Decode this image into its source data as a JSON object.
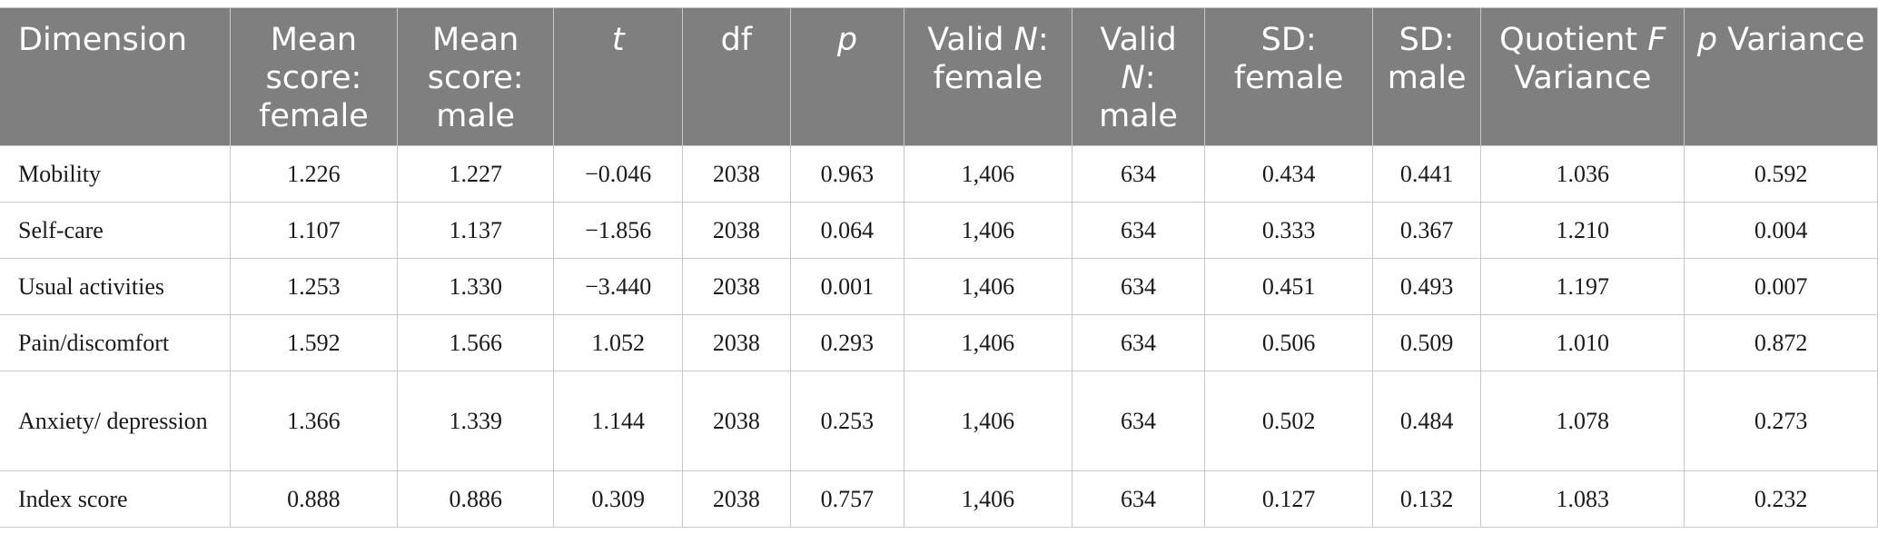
{
  "table": {
    "headers": [
      {
        "pre": "Dimension",
        "it": "",
        "post": ""
      },
      {
        "pre": "Mean score: female",
        "it": "",
        "post": ""
      },
      {
        "pre": "Mean score: male",
        "it": "",
        "post": ""
      },
      {
        "pre": "",
        "it": "t",
        "post": ""
      },
      {
        "pre": "df",
        "it": "",
        "post": ""
      },
      {
        "pre": "",
        "it": "p",
        "post": ""
      },
      {
        "pre": "Valid ",
        "it": "N",
        "post": ": female"
      },
      {
        "pre": "Valid ",
        "it": "N",
        "post": ": male"
      },
      {
        "pre": "SD: female",
        "it": "",
        "post": ""
      },
      {
        "pre": "SD: male",
        "it": "",
        "post": ""
      },
      {
        "pre": "Quotient ",
        "it": "F",
        "post": " Variance"
      },
      {
        "pre": "",
        "it": "p",
        "post": " Variance"
      }
    ],
    "rows": [
      [
        "Mobility",
        "1.226",
        "1.227",
        "−0.046",
        "2038",
        "0.963",
        "1,406",
        "634",
        "0.434",
        "0.441",
        "1.036",
        "0.592"
      ],
      [
        "Self-care",
        "1.107",
        "1.137",
        "−1.856",
        "2038",
        "0.064",
        "1,406",
        "634",
        "0.333",
        "0.367",
        "1.210",
        "0.004"
      ],
      [
        "Usual activities",
        "1.253",
        "1.330",
        "−3.440",
        "2038",
        "0.001",
        "1,406",
        "634",
        "0.451",
        "0.493",
        "1.197",
        "0.007"
      ],
      [
        "Pain/discomfort",
        "1.592",
        "1.566",
        "1.052",
        "2038",
        "0.293",
        "1,406",
        "634",
        "0.506",
        "0.509",
        "1.010",
        "0.872"
      ],
      [
        "Anxiety/ depression",
        "1.366",
        "1.339",
        "1.144",
        "2038",
        "0.253",
        "1,406",
        "634",
        "0.502",
        "0.484",
        "1.078",
        "0.273"
      ],
      [
        "Index score",
        "0.888",
        "0.886",
        "0.309",
        "2038",
        "0.757",
        "1,406",
        "634",
        "0.127",
        "0.132",
        "1.083",
        "0.232"
      ]
    ]
  }
}
